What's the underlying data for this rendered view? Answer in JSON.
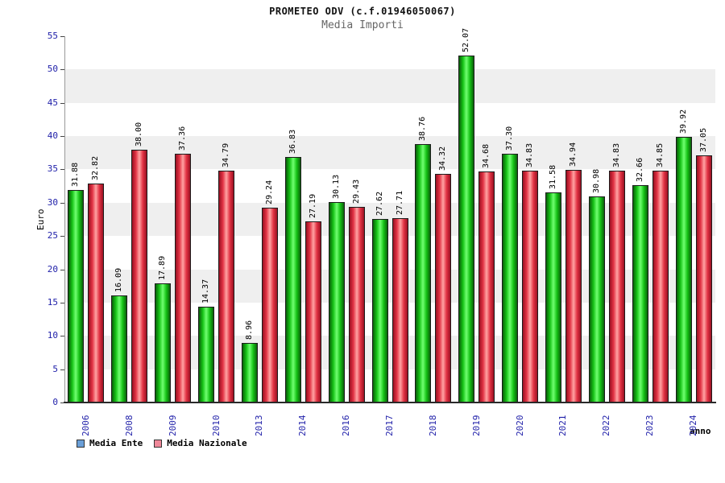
{
  "chart_data": {
    "type": "bar",
    "title": "PROMETEO ODV (c.f.01946050067)",
    "subtitle": "Media Importi",
    "ylabel": "Euro",
    "xlabel": "anno",
    "ylim": [
      0,
      55
    ],
    "ytick_step": 5,
    "grid": "horizontal-bands",
    "legend_position": "bottom-left",
    "value_label_decimals": 2,
    "categories": [
      "2006",
      "2008",
      "2009",
      "2010",
      "2013",
      "2014",
      "2016",
      "2017",
      "2018",
      "2019",
      "2020",
      "2021",
      "2022",
      "2023",
      "2024"
    ],
    "series": [
      {
        "name": "Media Ente",
        "legend_swatch": "#6a9fd8",
        "bar_edge": "#0a5f0a",
        "bar_mid": "#16c216",
        "bar_center": "#70ff70",
        "values": [
          31.88,
          16.09,
          17.89,
          14.37,
          8.96,
          36.83,
          30.13,
          27.62,
          38.76,
          52.07,
          37.3,
          31.58,
          30.98,
          32.66,
          39.92
        ]
      },
      {
        "name": "Media Nazionale",
        "legend_swatch": "#ef8899",
        "bar_edge": "#991122",
        "bar_mid": "#e23344",
        "bar_center": "#ffa3a3",
        "values": [
          32.82,
          38.0,
          37.36,
          34.79,
          29.24,
          27.19,
          29.43,
          27.71,
          34.32,
          34.68,
          34.83,
          34.94,
          34.83,
          34.85,
          37.05
        ]
      }
    ],
    "colors": {
      "axis_text": "#2222aa",
      "band_gray": "#efefef",
      "band_white": "#ffffff",
      "subtitle": "#666666",
      "axis_line": "#2a2a2a"
    }
  }
}
